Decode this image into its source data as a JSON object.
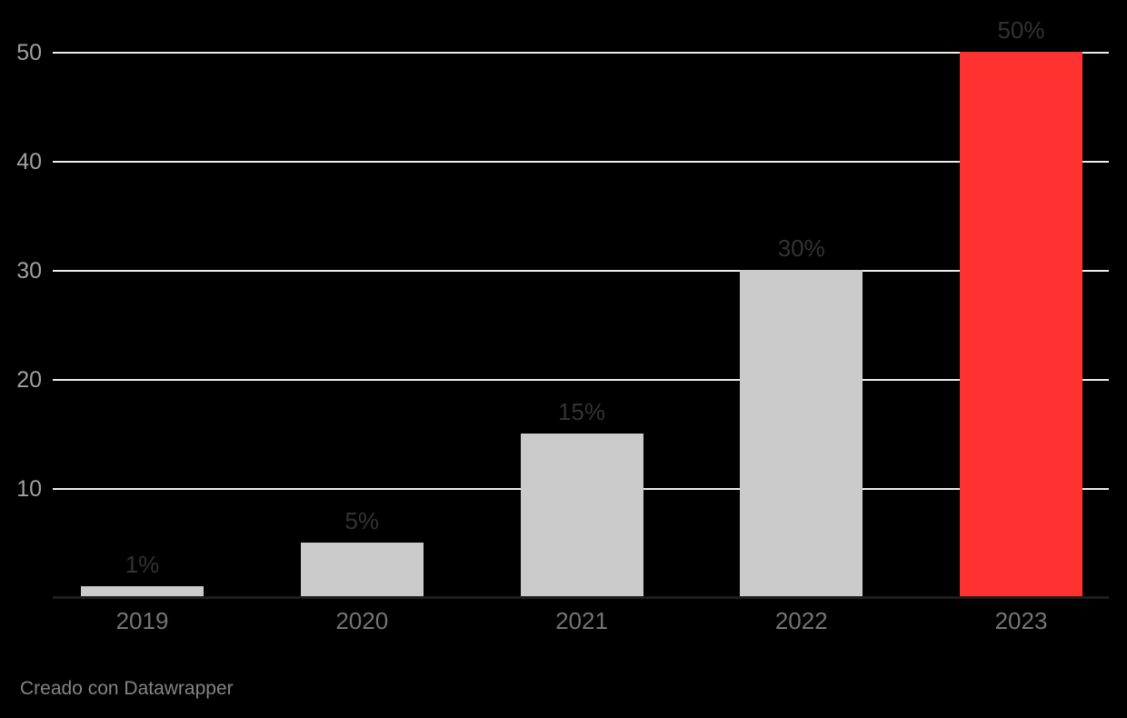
{
  "chart": {
    "footer": "Creado con Datawrapper"
  },
  "chart_data": {
    "type": "bar",
    "title": "",
    "xlabel": "",
    "ylabel": "",
    "categories": [
      "2019",
      "2020",
      "2021",
      "2022",
      "2023"
    ],
    "values": [
      1,
      5,
      15,
      30,
      50
    ],
    "value_labels": [
      "1%",
      "5%",
      "15%",
      "30%",
      "50%"
    ],
    "yticks": [
      10,
      20,
      30,
      40,
      50
    ],
    "ylim": [
      0,
      50
    ],
    "grid": true,
    "legend": "none",
    "highlight_index": 4,
    "colors": {
      "background": "#000000",
      "bar_default": "#cbcbcb",
      "bar_highlight": "#ff3231",
      "gridline": "#ececec",
      "baseline": "#1d1d1d",
      "value_label": "#333333",
      "x_tick_label": "#757575",
      "y_tick_label": "#a0a0a0",
      "attribution": "#848484"
    }
  }
}
